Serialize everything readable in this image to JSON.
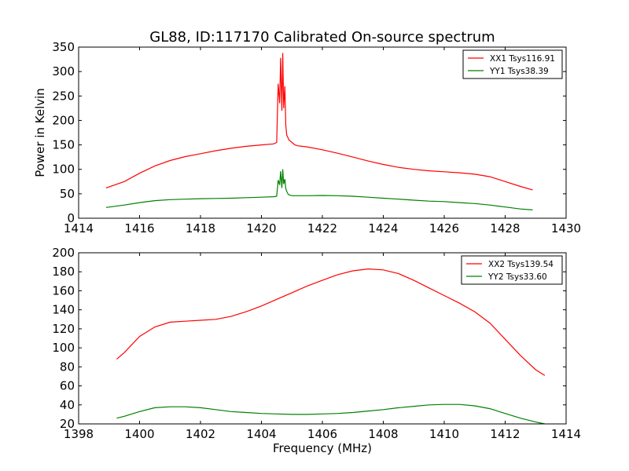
{
  "title": "GL88, ID:117170 Calibrated On-source spectrum",
  "colors": {
    "xx": "#ff0000",
    "yy": "#008000"
  },
  "chart_data": [
    {
      "type": "line",
      "xlabel": "",
      "ylabel": "Power in Kelvin",
      "xlim": [
        1414,
        1430
      ],
      "ylim": [
        0,
        350
      ],
      "xticks": [
        "1414",
        "1416",
        "1418",
        "1420",
        "1422",
        "1424",
        "1426",
        "1428",
        "1430"
      ],
      "yticks": [
        "0",
        "50",
        "100",
        "150",
        "200",
        "250",
        "300",
        "350"
      ],
      "grid": false,
      "legend": "top-right",
      "series": [
        {
          "name": "XX1 Tsys116.91",
          "color": "#ff0000",
          "x": [
            1414.9,
            1415.5,
            1416.0,
            1416.5,
            1417.0,
            1417.5,
            1418.0,
            1418.5,
            1419.0,
            1419.5,
            1420.0,
            1420.4,
            1420.5,
            1420.55,
            1420.6,
            1420.63,
            1420.67,
            1420.7,
            1420.73,
            1420.77,
            1420.8,
            1420.83,
            1420.87,
            1420.9,
            1420.95,
            1421.0,
            1421.1,
            1421.2,
            1421.5,
            1422.0,
            1422.5,
            1423.0,
            1423.5,
            1424.0,
            1424.5,
            1425.0,
            1425.5,
            1426.0,
            1426.5,
            1427.0,
            1427.5,
            1428.0,
            1428.5,
            1428.9
          ],
          "y": [
            62,
            75,
            92,
            107,
            118,
            126,
            132,
            138,
            143,
            147,
            150,
            152,
            155,
            275,
            235,
            328,
            220,
            338,
            225,
            270,
            190,
            170,
            165,
            160,
            158,
            155,
            150,
            148,
            146,
            140,
            133,
            125,
            117,
            110,
            104,
            100,
            97,
            95,
            93,
            90,
            85,
            75,
            65,
            58
          ]
        },
        {
          "name": "YY1 Tsys38.39",
          "color": "#008000",
          "x": [
            1414.9,
            1415.5,
            1416.0,
            1416.5,
            1417.0,
            1417.5,
            1418.0,
            1418.5,
            1419.0,
            1419.5,
            1420.0,
            1420.4,
            1420.5,
            1420.55,
            1420.6,
            1420.63,
            1420.67,
            1420.7,
            1420.73,
            1420.77,
            1420.8,
            1420.83,
            1420.87,
            1420.9,
            1420.95,
            1421.0,
            1421.1,
            1421.2,
            1421.5,
            1422.0,
            1422.5,
            1423.0,
            1423.5,
            1424.0,
            1424.5,
            1425.0,
            1425.5,
            1426.0,
            1426.5,
            1427.0,
            1427.5,
            1428.0,
            1428.5,
            1428.9
          ],
          "y": [
            22,
            27,
            32,
            36,
            38,
            39,
            40,
            40.5,
            41,
            42,
            43,
            44,
            45,
            78,
            68,
            96,
            62,
            100,
            70,
            80,
            60,
            55,
            50,
            48,
            47,
            46,
            46,
            46,
            46,
            46.5,
            46,
            45,
            43,
            41,
            39,
            37,
            35,
            34,
            32,
            30,
            27,
            23,
            19,
            17
          ]
        }
      ]
    },
    {
      "type": "line",
      "xlabel": "Frequency (MHz)",
      "ylabel": "",
      "xlim": [
        1398,
        1414
      ],
      "ylim": [
        20,
        200
      ],
      "xticks": [
        "1398",
        "1400",
        "1402",
        "1404",
        "1406",
        "1408",
        "1410",
        "1412",
        "1414"
      ],
      "yticks": [
        "20",
        "40",
        "60",
        "80",
        "100",
        "120",
        "140",
        "160",
        "180",
        "200"
      ],
      "grid": false,
      "legend": "top-right",
      "series": [
        {
          "name": "XX2 Tsys139.54",
          "color": "#ff0000",
          "x": [
            1399.25,
            1399.5,
            1400.0,
            1400.5,
            1401.0,
            1401.5,
            1402.0,
            1402.5,
            1403.0,
            1403.5,
            1404.0,
            1404.5,
            1405.0,
            1405.5,
            1406.0,
            1406.5,
            1407.0,
            1407.5,
            1408.0,
            1408.5,
            1409.0,
            1409.5,
            1410.0,
            1410.5,
            1411.0,
            1411.5,
            1412.0,
            1412.5,
            1413.0,
            1413.3
          ],
          "y": [
            88,
            95,
            112,
            122,
            127,
            128,
            129,
            130,
            133,
            138,
            144,
            151,
            158,
            165,
            171,
            177,
            181,
            183,
            182,
            178,
            171,
            163,
            155,
            147,
            138,
            126,
            109,
            92,
            77,
            71
          ]
        },
        {
          "name": "YY2 Tsys33.60",
          "color": "#008000",
          "x": [
            1399.25,
            1399.5,
            1400.0,
            1400.5,
            1401.0,
            1401.5,
            1402.0,
            1402.5,
            1403.0,
            1403.5,
            1404.0,
            1404.5,
            1405.0,
            1405.5,
            1406.0,
            1406.5,
            1407.0,
            1407.5,
            1408.0,
            1408.5,
            1409.0,
            1409.5,
            1410.0,
            1410.5,
            1411.0,
            1411.5,
            1412.0,
            1412.5,
            1413.0,
            1413.3
          ],
          "y": [
            26,
            28,
            33,
            37,
            38,
            38,
            37,
            35,
            33,
            32,
            31,
            30.5,
            30,
            30,
            30.5,
            31,
            32,
            33.5,
            35,
            37,
            38.5,
            40,
            40.5,
            40.5,
            39,
            36,
            31,
            26,
            22,
            20
          ]
        }
      ]
    }
  ]
}
